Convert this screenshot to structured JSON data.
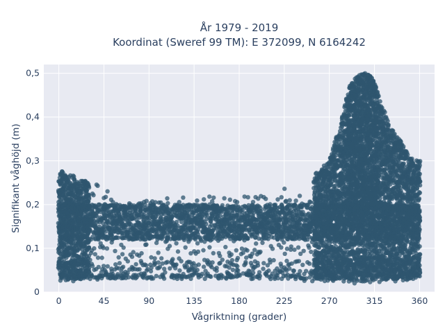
{
  "chart_data": {
    "type": "scatter",
    "title_lines": [
      "År 1979 - 2019",
      "Koordinat (Sweref 99 TM): E 372099, N 6164242"
    ],
    "xlabel": "Vågriktning (grader)",
    "ylabel": "Signifikant våghöjd (m)",
    "xlim": [
      -15,
      375
    ],
    "ylim": [
      0,
      0.52
    ],
    "x_ticks": [
      0,
      45,
      90,
      135,
      180,
      225,
      270,
      315,
      360
    ],
    "x_tick_labels": [
      "0",
      "45",
      "90",
      "135",
      "180",
      "225",
      "270",
      "315",
      "360"
    ],
    "y_ticks": [
      0,
      0.1,
      0.2,
      0.3,
      0.4,
      0.5
    ],
    "y_tick_labels": [
      "0",
      "0,1",
      "0,2",
      "0,3",
      "0,4",
      "0,5"
    ],
    "grid": true,
    "marker_color": "#2f566f",
    "plot_background": "#e8eaf2",
    "upper_envelope": [
      [
        0,
        0.28
      ],
      [
        10,
        0.27
      ],
      [
        20,
        0.26
      ],
      [
        30,
        0.25
      ],
      [
        45,
        0.25
      ],
      [
        60,
        0.2
      ],
      [
        90,
        0.21
      ],
      [
        135,
        0.22
      ],
      [
        180,
        0.22
      ],
      [
        210,
        0.23
      ],
      [
        230,
        0.24
      ],
      [
        250,
        0.26
      ],
      [
        270,
        0.3
      ],
      [
        280,
        0.38
      ],
      [
        290,
        0.47
      ],
      [
        300,
        0.5
      ],
      [
        310,
        0.5
      ],
      [
        315,
        0.48
      ],
      [
        322,
        0.43
      ],
      [
        330,
        0.38
      ],
      [
        340,
        0.35
      ],
      [
        350,
        0.31
      ],
      [
        360,
        0.3
      ]
    ],
    "lower_envelope": [
      [
        0,
        0.02
      ],
      [
        45,
        0.03
      ],
      [
        90,
        0.03
      ],
      [
        135,
        0.03
      ],
      [
        180,
        0.03
      ],
      [
        225,
        0.03
      ],
      [
        270,
        0.02
      ],
      [
        315,
        0.02
      ],
      [
        360,
        0.03
      ]
    ],
    "dense_core_range": [
      0.12,
      0.2
    ],
    "dense_low_range": [
      0.03,
      0.07
    ]
  }
}
